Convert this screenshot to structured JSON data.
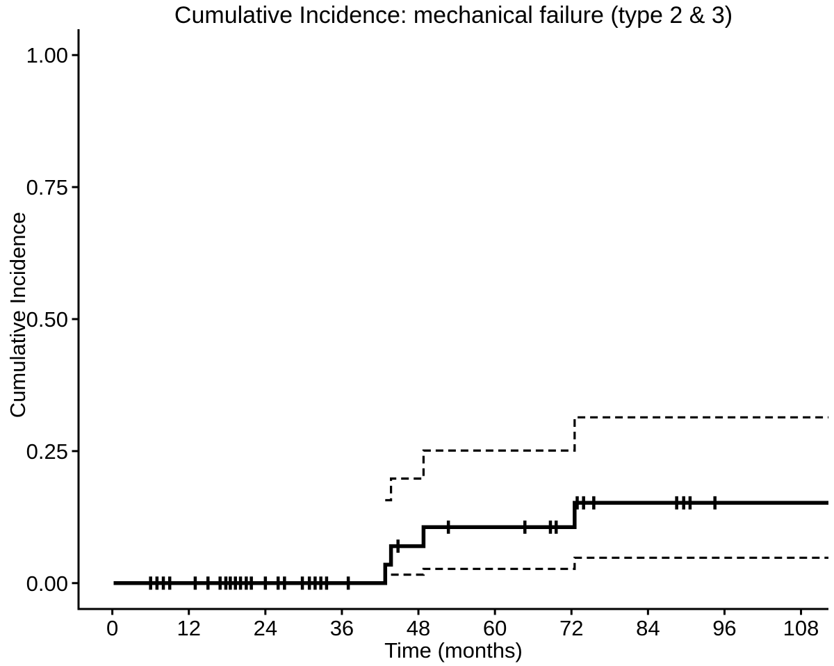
{
  "figure": {
    "background_color": "#ffffff",
    "foreground_color": "#000000"
  },
  "chart_data": {
    "type": "line",
    "subtype": "cumulative-incidence-step-curve-with-95ci",
    "title": "Cumulative Incidence: mechanical failure (type 2 & 3)",
    "xlabel": "Time (months)",
    "ylabel": "Cumulative Incidence",
    "grid": false,
    "legend_position": "none",
    "xlim": [
      -5.3,
      112.3
    ],
    "ylim": [
      -0.049,
      1.049
    ],
    "x_ticks": [
      0,
      12,
      24,
      36,
      48,
      60,
      72,
      84,
      96,
      108
    ],
    "x_tick_labels": [
      "0",
      "12",
      "24",
      "36",
      "48",
      "60",
      "72",
      "84",
      "96",
      "108"
    ],
    "y_ticks": [
      0,
      0.25,
      0.5,
      0.75,
      1
    ],
    "y_tick_labels": [
      "0.00",
      "0.25",
      "0.50",
      "0.75",
      "1.00"
    ],
    "series": [
      {
        "name": "cumulative-incidence-estimate",
        "line_style": "solid",
        "line_width": 5.5,
        "step_points": [
          [
            0.2,
            0
          ],
          [
            42.8,
            0.035
          ],
          [
            43.7,
            0.07
          ],
          [
            48.8,
            0.106
          ],
          [
            72.5,
            0.152
          ]
        ],
        "extend_to": 112.3
      },
      {
        "name": "upper-95ci-band",
        "line_style": "dashed",
        "line_width": 3.2,
        "step_points": [
          [
            42.8,
            0.157
          ],
          [
            43.7,
            0.198
          ],
          [
            48.8,
            0.251
          ],
          [
            72.5,
            0.314
          ]
        ],
        "extend_to": 112.3
      },
      {
        "name": "lower-95ci-band",
        "line_style": "dashed",
        "line_width": 3.2,
        "step_points": [
          [
            43.7,
            0.016
          ],
          [
            48.8,
            0.027
          ],
          [
            72.5,
            0.048
          ]
        ],
        "extend_to": 112.3
      }
    ],
    "censor_marks": {
      "meaning": "vertical tick = censored observation",
      "points": [
        {
          "t": 6,
          "v": 0
        },
        {
          "t": 7,
          "v": 0
        },
        {
          "t": 8,
          "v": 0
        },
        {
          "t": 9,
          "v": 0
        },
        {
          "t": 13,
          "v": 0
        },
        {
          "t": 15,
          "v": 0
        },
        {
          "t": 16.9,
          "v": 0
        },
        {
          "t": 17.8,
          "v": 0
        },
        {
          "t": 18.5,
          "v": 0
        },
        {
          "t": 19.3,
          "v": 0
        },
        {
          "t": 20.1,
          "v": 0
        },
        {
          "t": 21,
          "v": 0
        },
        {
          "t": 21.8,
          "v": 0
        },
        {
          "t": 24,
          "v": 0
        },
        {
          "t": 26,
          "v": 0
        },
        {
          "t": 27,
          "v": 0
        },
        {
          "t": 29.8,
          "v": 0
        },
        {
          "t": 30.9,
          "v": 0
        },
        {
          "t": 31.8,
          "v": 0
        },
        {
          "t": 32.7,
          "v": 0
        },
        {
          "t": 33.6,
          "v": 0
        },
        {
          "t": 37,
          "v": 0
        },
        {
          "t": 44.8,
          "v": 0.07
        },
        {
          "t": 52.7,
          "v": 0.106
        },
        {
          "t": 64.7,
          "v": 0.106
        },
        {
          "t": 68.7,
          "v": 0.106
        },
        {
          "t": 69.6,
          "v": 0.106
        },
        {
          "t": 72.9,
          "v": 0.152
        },
        {
          "t": 73.9,
          "v": 0.152
        },
        {
          "t": 75.5,
          "v": 0.152
        },
        {
          "t": 88.5,
          "v": 0.152
        },
        {
          "t": 89.6,
          "v": 0.152
        },
        {
          "t": 90.6,
          "v": 0.152
        },
        {
          "t": 94.5,
          "v": 0.152
        }
      ]
    }
  }
}
